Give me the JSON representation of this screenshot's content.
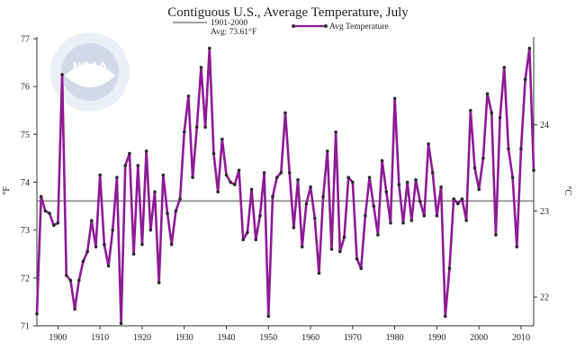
{
  "chart_data": {
    "type": "line",
    "title": "Contiguous U.S., Average Temperature, July",
    "xlim": [
      1895,
      2013
    ],
    "ylim": [
      71,
      77
    ],
    "y_ticks": [
      71,
      72,
      73,
      74,
      75,
      76,
      77
    ],
    "x_ticks": [
      1900,
      1910,
      1920,
      1930,
      1940,
      1950,
      1960,
      1970,
      1980,
      1990,
      2000,
      2010
    ],
    "ylabel_left": "°F",
    "ylabel_right": "°C",
    "y2_ticks": [
      22,
      23,
      24
    ],
    "grid": false,
    "legend": {
      "position": "top-center",
      "baseline_label_line1": "1901-2000",
      "baseline_label_line2": "Avg: 73.61°F",
      "series_label": "Avg Temperature"
    },
    "baseline": {
      "name": "1901-2000",
      "value": 73.61,
      "color": "#6b6b6b"
    },
    "watermark": "NOAA",
    "series": [
      {
        "name": "Avg Temperature",
        "color": "#8e1a96",
        "x": [
          1895,
          1896,
          1897,
          1898,
          1899,
          1900,
          1901,
          1902,
          1903,
          1904,
          1905,
          1906,
          1907,
          1908,
          1909,
          1910,
          1911,
          1912,
          1913,
          1914,
          1915,
          1916,
          1917,
          1918,
          1919,
          1920,
          1921,
          1922,
          1923,
          1924,
          1925,
          1926,
          1927,
          1928,
          1929,
          1930,
          1931,
          1932,
          1933,
          1934,
          1935,
          1936,
          1937,
          1938,
          1939,
          1940,
          1941,
          1942,
          1943,
          1944,
          1945,
          1946,
          1947,
          1948,
          1949,
          1950,
          1951,
          1952,
          1953,
          1954,
          1955,
          1956,
          1957,
          1958,
          1959,
          1960,
          1961,
          1962,
          1963,
          1964,
          1965,
          1966,
          1967,
          1968,
          1969,
          1970,
          1971,
          1972,
          1973,
          1974,
          1975,
          1976,
          1977,
          1978,
          1979,
          1980,
          1981,
          1982,
          1983,
          1984,
          1985,
          1986,
          1987,
          1988,
          1989,
          1990,
          1991,
          1992,
          1993,
          1994,
          1995,
          1996,
          1997,
          1998,
          1999,
          2000,
          2001,
          2002,
          2003,
          2004,
          2005,
          2006,
          2007,
          2008,
          2009,
          2010,
          2011,
          2012,
          2013
        ],
        "values": [
          71.25,
          73.7,
          73.4,
          73.35,
          73.1,
          73.15,
          76.25,
          72.05,
          71.95,
          71.35,
          71.95,
          72.35,
          72.55,
          73.2,
          72.65,
          74.15,
          72.7,
          72.25,
          73.0,
          74.1,
          71.05,
          74.35,
          74.6,
          72.5,
          74.35,
          72.7,
          74.65,
          73.0,
          73.8,
          71.9,
          74.15,
          73.35,
          72.7,
          73.4,
          73.65,
          75.05,
          75.8,
          74.1,
          75.15,
          76.4,
          75.15,
          76.8,
          74.6,
          73.8,
          74.9,
          74.15,
          74.0,
          73.95,
          74.25,
          72.8,
          72.95,
          73.85,
          72.8,
          73.3,
          74.2,
          71.2,
          73.7,
          74.1,
          74.2,
          75.45,
          74.2,
          73.05,
          74.05,
          72.65,
          73.55,
          73.9,
          73.25,
          72.1,
          73.7,
          74.65,
          72.6,
          75.05,
          72.55,
          72.85,
          74.1,
          74.0,
          72.4,
          72.2,
          73.3,
          74.1,
          73.5,
          72.9,
          74.45,
          73.8,
          73.15,
          75.75,
          73.95,
          73.15,
          74.0,
          73.2,
          74.05,
          73.6,
          73.3,
          74.8,
          74.2,
          73.3,
          73.9,
          71.2,
          72.2,
          73.65,
          73.55,
          73.65,
          73.2,
          75.5,
          74.3,
          73.85,
          74.5,
          75.85,
          75.45,
          72.9,
          75.35,
          76.4,
          74.7,
          74.1,
          72.65,
          74.7,
          76.15,
          76.8,
          74.25
        ]
      }
    ]
  }
}
